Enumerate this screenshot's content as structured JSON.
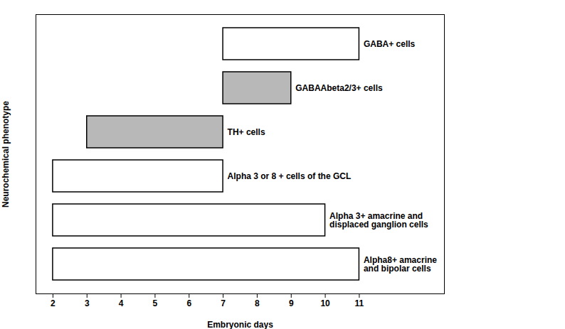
{
  "chart_data": {
    "type": "bar",
    "orientation": "horizontal",
    "categories": [
      "Alpha8+ amacrine\nand bipolar cells",
      "Alpha 3+ amacrine and\ndisplaced ganglion cells",
      "Alpha 3 or 8 + cells of the GCL",
      "TH+ cells",
      "GABAAbeta2/3+ cells",
      "GABA+ cells"
    ],
    "values": [
      [
        2,
        11
      ],
      [
        2,
        10
      ],
      [
        2,
        7
      ],
      [
        3,
        7
      ],
      [
        7,
        9
      ],
      [
        7,
        11
      ]
    ],
    "colors": [
      "white",
      "white",
      "white",
      "#b8b8b8",
      "#b8b8b8",
      "white"
    ],
    "xlabel": "Embryonic days",
    "ylabel": "Neurochemical phenotype",
    "xlim": [
      1.5,
      13.5
    ],
    "xticks": [
      2,
      3,
      4,
      5,
      6,
      7,
      8,
      9,
      10,
      11
    ],
    "tick_labels": "x"
  }
}
